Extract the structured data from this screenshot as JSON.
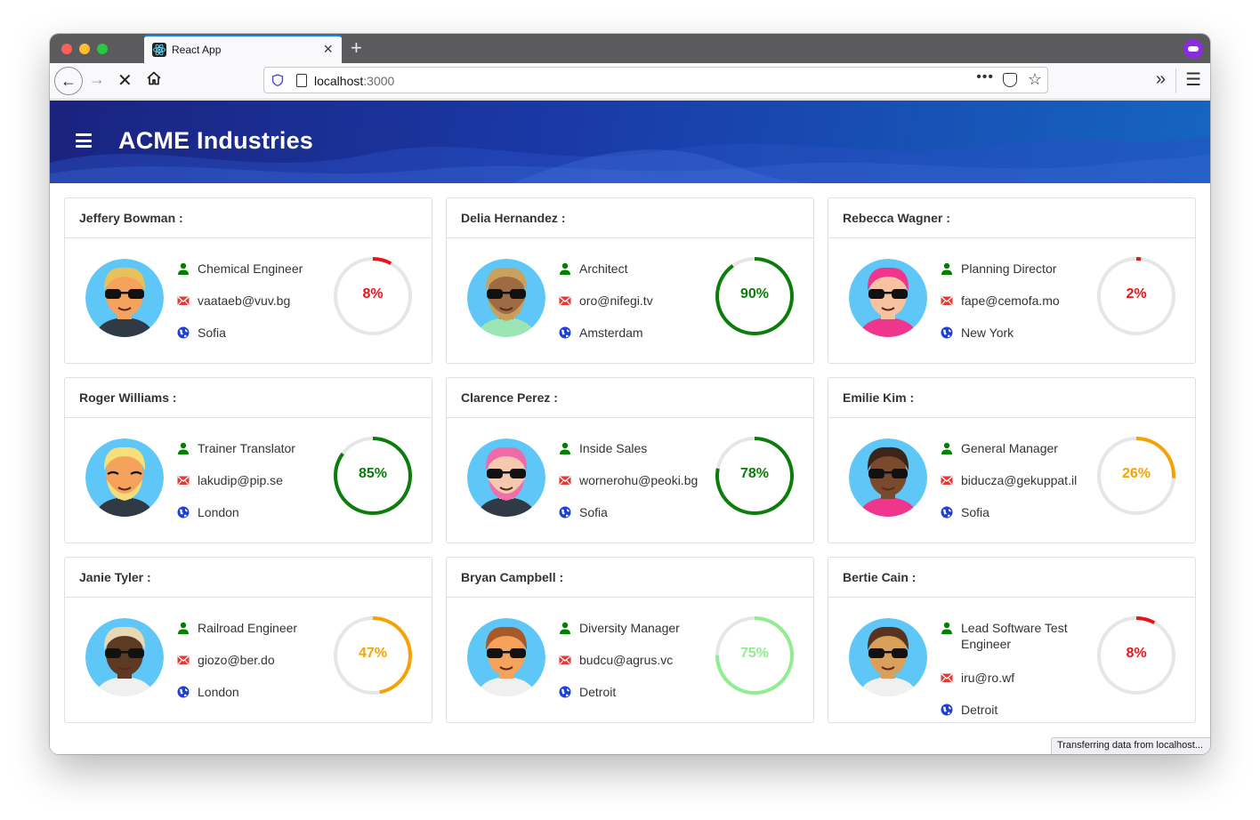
{
  "browser": {
    "tab_title": "React App",
    "url_host": "localhost",
    "url_port": ":3000",
    "status_text": "Transferring data from localhost..."
  },
  "app": {
    "title": "ACME Industries",
    "header_color": "#1a3aa8"
  },
  "colors": {
    "person_icon": "#008000",
    "mail_icon": "#e53935",
    "globe_icon": "#1e40d6",
    "track": "#e6e6e6"
  },
  "people": [
    {
      "name": "Jeffery Bowman :",
      "title": "Chemical Engineer",
      "email": "vaataeb@vuv.bg",
      "city": "Sofia",
      "score": 8,
      "score_label": "8%",
      "color": "#e8141c"
    },
    {
      "name": "Delia Hernandez :",
      "title": "Architect",
      "email": "oro@nifegi.tv",
      "city": "Amsterdam",
      "score": 90,
      "score_label": "90%",
      "color": "#0a7d0a"
    },
    {
      "name": "Rebecca Wagner :",
      "title": "Planning Director",
      "email": "fape@cemofa.mo",
      "city": "New York",
      "score": 2,
      "score_label": "2%",
      "color": "#e8141c"
    },
    {
      "name": "Roger Williams :",
      "title": "Trainer Translator",
      "email": "lakudip@pip.se",
      "city": "London",
      "score": 85,
      "score_label": "85%",
      "color": "#0a7d0a"
    },
    {
      "name": "Clarence Perez :",
      "title": "Inside Sales",
      "email": "wornerohu@peoki.bg",
      "city": "Sofia",
      "score": 78,
      "score_label": "78%",
      "color": "#0a7d0a"
    },
    {
      "name": "Emilie Kim :",
      "title": "General Manager",
      "email": "biducza@gekuppat.il",
      "city": "Sofia",
      "score": 26,
      "score_label": "26%",
      "color": "#f5a300"
    },
    {
      "name": "Janie Tyler :",
      "title": "Railroad Engineer",
      "email": "giozo@ber.do",
      "city": "London",
      "score": 47,
      "score_label": "47%",
      "color": "#f5a300"
    },
    {
      "name": "Bryan Campbell :",
      "title": "Diversity Manager",
      "email": "budcu@agrus.vc",
      "city": "Detroit",
      "score": 75,
      "score_label": "75%",
      "color": "#90ee90"
    },
    {
      "name": "Bertie Cain :",
      "title": "Lead Software Test Engineer",
      "email": "iru@ro.wf",
      "city": "Detroit",
      "score": 8,
      "score_label": "8%",
      "color": "#e8141c"
    }
  ],
  "avatars": [
    {
      "hair": "#e8c15a",
      "skin": "#f5a25d",
      "shirt": "#2f3a45",
      "glasses": true,
      "beard": false
    },
    {
      "hair": "#c9a15c",
      "skin": "#9c6a43",
      "shirt": "#9be5b5",
      "glasses": true,
      "beard": true
    },
    {
      "hair": "#f0368c",
      "skin": "#f7c2a0",
      "shirt": "#f0368c",
      "glasses": true,
      "beard": false
    },
    {
      "hair": "#f5e07a",
      "skin": "#f5a25d",
      "shirt": "#2f3a45",
      "glasses": false,
      "beard": true
    },
    {
      "hair": "#f06aa8",
      "skin": "#f5c9b0",
      "shirt": "#2f3a45",
      "glasses": true,
      "beard": true
    },
    {
      "hair": "#3b2418",
      "skin": "#7a4a2e",
      "shirt": "#f0368c",
      "glasses": true,
      "beard": false
    },
    {
      "hair": "#e9d8b4",
      "skin": "#5c3a24",
      "shirt": "#f0f0f0",
      "glasses": true,
      "beard": false
    },
    {
      "hair": "#a8592a",
      "skin": "#f5a25d",
      "shirt": "#f0f0f0",
      "glasses": true,
      "beard": false
    },
    {
      "hair": "#5a3220",
      "skin": "#d9a05c",
      "shirt": "#f0f0f0",
      "glasses": true,
      "beard": false
    }
  ]
}
